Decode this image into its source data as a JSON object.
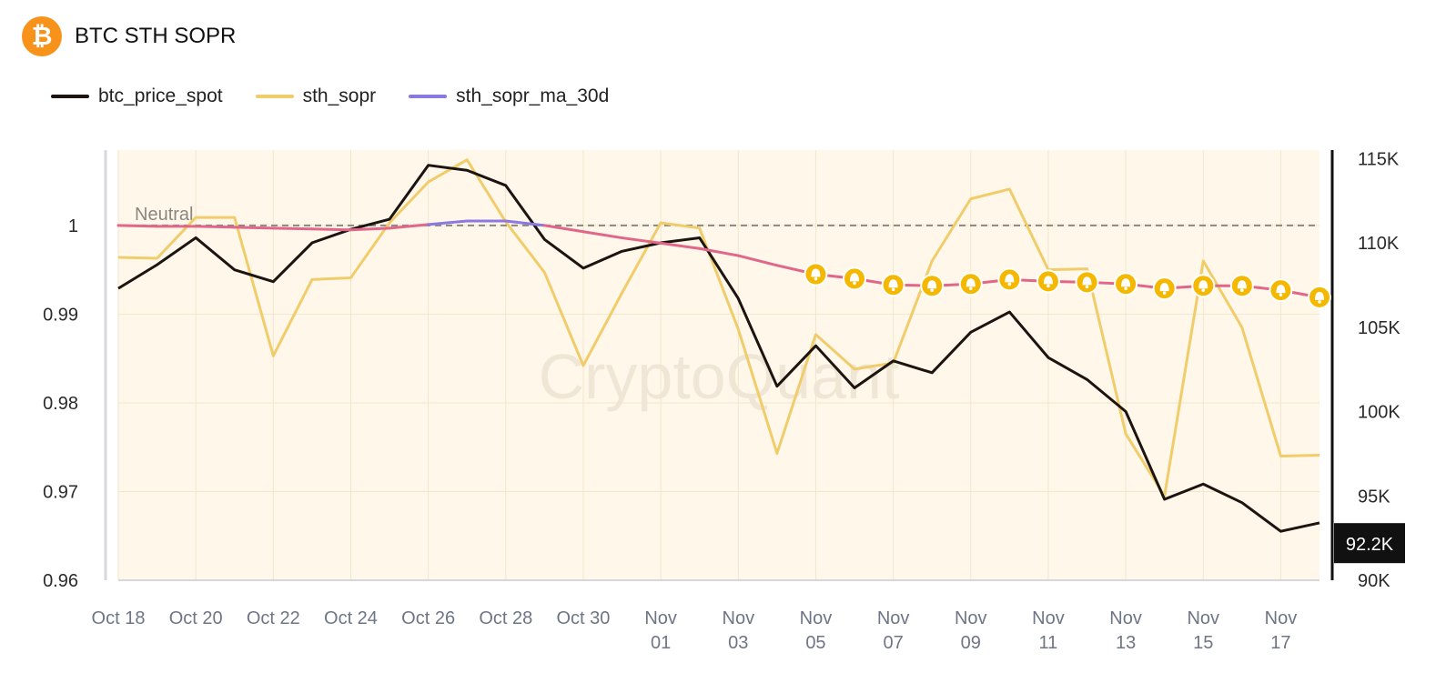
{
  "header": {
    "logo_symbol": "₿",
    "title": "BTC STH SOPR"
  },
  "legend": [
    {
      "label": "btc_price_spot",
      "color": "#1b1410"
    },
    {
      "label": "sth_sopr",
      "color": "#f0cc6a"
    },
    {
      "label": "sth_sopr_ma_30d",
      "color": "#8b78e0"
    }
  ],
  "colors": {
    "plot_background": "#fff8ea",
    "ma_below_neutral": "#e0668a",
    "alert_marker": "#f5b800",
    "price_badge_bg": "#111111"
  },
  "chart_data": {
    "type": "line",
    "title": "BTC STH SOPR",
    "x": [
      "Oct 18",
      "Oct 19",
      "Oct 20",
      "Oct 21",
      "Oct 22",
      "Oct 23",
      "Oct 24",
      "Oct 25",
      "Oct 26",
      "Oct 27",
      "Oct 28",
      "Oct 29",
      "Oct 30",
      "Oct 31",
      "Nov 01",
      "Nov 02",
      "Nov 03",
      "Nov 04",
      "Nov 05",
      "Nov 06",
      "Nov 07",
      "Nov 08",
      "Nov 09",
      "Nov 10",
      "Nov 11",
      "Nov 12",
      "Nov 13",
      "Nov 14",
      "Nov 15",
      "Nov 16",
      "Nov 17",
      "Nov 18"
    ],
    "x_tick_labels": [
      {
        "lines": [
          "Oct 18"
        ]
      },
      {
        "lines": [
          "Oct 20"
        ]
      },
      {
        "lines": [
          "Oct 22"
        ]
      },
      {
        "lines": [
          "Oct 24"
        ]
      },
      {
        "lines": [
          "Oct 26"
        ]
      },
      {
        "lines": [
          "Oct 28"
        ]
      },
      {
        "lines": [
          "Oct 30"
        ]
      },
      {
        "lines": [
          "Nov",
          "01"
        ]
      },
      {
        "lines": [
          "Nov",
          "03"
        ]
      },
      {
        "lines": [
          "Nov",
          "05"
        ]
      },
      {
        "lines": [
          "Nov",
          "07"
        ]
      },
      {
        "lines": [
          "Nov",
          "09"
        ]
      },
      {
        "lines": [
          "Nov",
          "11"
        ]
      },
      {
        "lines": [
          "Nov",
          "13"
        ]
      },
      {
        "lines": [
          "Nov",
          "15"
        ]
      },
      {
        "lines": [
          "Nov",
          "17"
        ]
      }
    ],
    "y_left": {
      "ticks": [
        "0.96",
        "0.97",
        "0.98",
        "0.99",
        "1"
      ],
      "ylim": [
        0.96,
        1.0085
      ]
    },
    "y_right": {
      "ticks": [
        "90K",
        "95K",
        "100K",
        "105K",
        "110K",
        "115K"
      ],
      "ylim": [
        90000,
        115500
      ]
    },
    "neutral_line": {
      "value": 1.0,
      "label": "Neutral"
    },
    "watermark": "CryptoQuant",
    "current_price_label": "92.2K",
    "current_price": 92200,
    "series": [
      {
        "name": "btc_price_spot",
        "axis": "right",
        "color": "#1b1410",
        "values": [
          107300,
          108700,
          110300,
          108400,
          107700,
          110000,
          110800,
          111400,
          114600,
          114300,
          113400,
          110200,
          108500,
          109500,
          110000,
          110300,
          106700,
          101500,
          103900,
          101400,
          103000,
          102300,
          104700,
          105900,
          103200,
          101900,
          100000,
          94800,
          95700,
          94600,
          92900,
          93400
        ]
      },
      {
        "name": "sth_sopr",
        "axis": "left",
        "color": "#f0cc6a",
        "values": [
          0.9964,
          0.9963,
          1.0009,
          1.0009,
          0.9853,
          0.9939,
          0.9941,
          1.0003,
          1.0049,
          1.0074,
          1.0004,
          0.9947,
          0.9842,
          0.9924,
          1.0003,
          0.9997,
          0.9883,
          0.9743,
          0.9877,
          0.9838,
          0.9845,
          0.996,
          1.003,
          1.0041,
          0.995,
          0.9951,
          0.9765,
          0.9695,
          0.996,
          0.9885,
          0.974,
          0.9741
        ]
      },
      {
        "name": "sth_sopr_ma_30d",
        "axis": "left",
        "color": "#8b78e0",
        "values": [
          1.0,
          0.9999,
          0.9999,
          0.9998,
          0.9997,
          0.9996,
          0.9995,
          0.9997,
          1.0001,
          1.0005,
          1.0005,
          1.0,
          0.9993,
          0.9986,
          0.998,
          0.9974,
          0.9966,
          0.9955,
          0.9945,
          0.994,
          0.9933,
          0.9932,
          0.9934,
          0.9939,
          0.9937,
          0.9936,
          0.9934,
          0.9929,
          0.9932,
          0.9932,
          0.9927,
          0.9919
        ]
      }
    ],
    "alert_points_start": "Nov 05",
    "grid": true,
    "legend_position": "top-left"
  }
}
